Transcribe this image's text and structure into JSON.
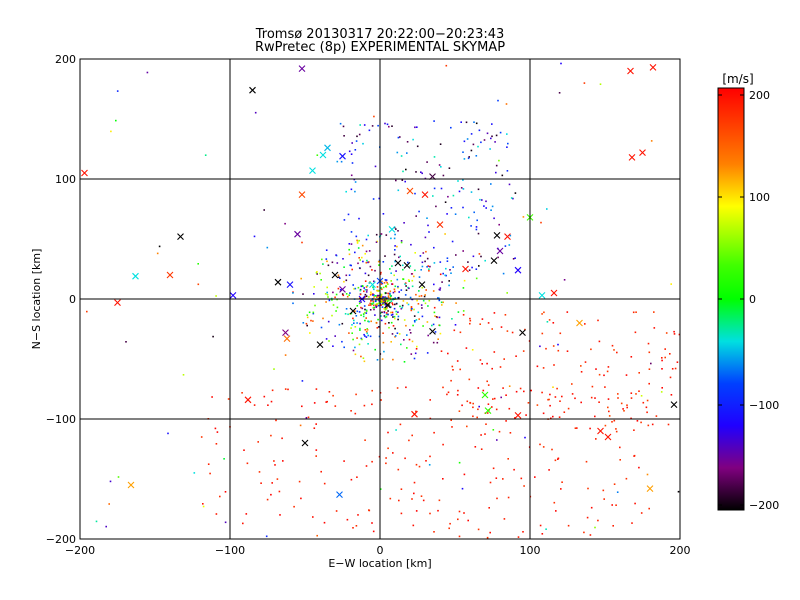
{
  "chart_data": {
    "type": "scatter",
    "title": "Tromsø 20130317 20:22:00−20:23:43",
    "subtitle": "RwPretec (8p) EXPERIMENTAL SKYMAP",
    "xlabel": "E−W location [km]",
    "ylabel": "N−S location [km]",
    "xlim": [
      -200,
      200
    ],
    "ylim": [
      -200,
      200
    ],
    "xticks": [
      "−200",
      "−100",
      "0",
      "100",
      "200"
    ],
    "yticks": [
      "−200",
      "−100",
      "0",
      "100",
      "200"
    ],
    "grid": true,
    "colorbar": {
      "label": "[m/s]",
      "range": [
        -200,
        200
      ],
      "ticks": [
        "200",
        "100",
        "0",
        "−100",
        "−200"
      ],
      "colormap": "black-purple-blue-cyan-green-yellow-red"
    },
    "cross_points": [
      {
        "x": -85,
        "y": 174,
        "v": -200
      },
      {
        "x": -52,
        "y": 192,
        "v": -150
      },
      {
        "x": -197,
        "y": 105,
        "v": 190
      },
      {
        "x": -52,
        "y": 87,
        "v": 160
      },
      {
        "x": -35,
        "y": 126,
        "v": -50
      },
      {
        "x": -38,
        "y": 120,
        "v": -40
      },
      {
        "x": -45,
        "y": 107,
        "v": -40
      },
      {
        "x": -25,
        "y": 119,
        "v": -110
      },
      {
        "x": 167,
        "y": 190,
        "v": 190
      },
      {
        "x": 182,
        "y": 193,
        "v": 190
      },
      {
        "x": 168,
        "y": 118,
        "v": 190
      },
      {
        "x": 175,
        "y": 122,
        "v": 190
      },
      {
        "x": -133,
        "y": 52,
        "v": -200
      },
      {
        "x": -163,
        "y": 19,
        "v": -40
      },
      {
        "x": -140,
        "y": 20,
        "v": 170
      },
      {
        "x": -175,
        "y": -3,
        "v": 190
      },
      {
        "x": -98,
        "y": 3,
        "v": -120
      },
      {
        "x": -68,
        "y": 14,
        "v": -200
      },
      {
        "x": -60,
        "y": 12,
        "v": -110
      },
      {
        "x": -55,
        "y": 54,
        "v": -150
      },
      {
        "x": -63,
        "y": -28,
        "v": -160
      },
      {
        "x": -62,
        "y": -33,
        "v": 140
      },
      {
        "x": -40,
        "y": -38,
        "v": -200
      },
      {
        "x": -88,
        "y": -84,
        "v": 190
      },
      {
        "x": -50,
        "y": -120,
        "v": -200
      },
      {
        "x": -27,
        "y": -163,
        "v": -70
      },
      {
        "x": -166,
        "y": -155,
        "v": 120
      },
      {
        "x": 20,
        "y": 90,
        "v": 160
      },
      {
        "x": 30,
        "y": 87,
        "v": 190
      },
      {
        "x": 35,
        "y": 102,
        "v": -180
      },
      {
        "x": 40,
        "y": 62,
        "v": 175
      },
      {
        "x": 8,
        "y": 58,
        "v": -40
      },
      {
        "x": 78,
        "y": 53,
        "v": -200
      },
      {
        "x": 85,
        "y": 52,
        "v": 190
      },
      {
        "x": 80,
        "y": 40,
        "v": -150
      },
      {
        "x": 76,
        "y": 32,
        "v": -200
      },
      {
        "x": 92,
        "y": 24,
        "v": -120
      },
      {
        "x": 57,
        "y": 25,
        "v": 190
      },
      {
        "x": 100,
        "y": 68,
        "v": 30
      },
      {
        "x": 12,
        "y": 30,
        "v": -200
      },
      {
        "x": 28,
        "y": 12,
        "v": -200
      },
      {
        "x": 108,
        "y": 3,
        "v": -40
      },
      {
        "x": 116,
        "y": 5,
        "v": 190
      },
      {
        "x": 133,
        "y": -20,
        "v": 120
      },
      {
        "x": 95,
        "y": -28,
        "v": -200
      },
      {
        "x": 35,
        "y": -27,
        "v": -200
      },
      {
        "x": 70,
        "y": -80,
        "v": 20
      },
      {
        "x": 72,
        "y": -93,
        "v": 20
      },
      {
        "x": 92,
        "y": -97,
        "v": 190
      },
      {
        "x": 23,
        "y": -96,
        "v": 190
      },
      {
        "x": 147,
        "y": -110,
        "v": 190
      },
      {
        "x": 152,
        "y": -115,
        "v": 190
      },
      {
        "x": 196,
        "y": -88,
        "v": -200
      },
      {
        "x": 180,
        "y": -158,
        "v": 120
      },
      {
        "x": -30,
        "y": 20,
        "v": -200
      },
      {
        "x": -25,
        "y": 8,
        "v": -150
      },
      {
        "x": -18,
        "y": -10,
        "v": -200
      },
      {
        "x": -12,
        "y": 0,
        "v": -120
      },
      {
        "x": 0,
        "y": 15,
        "v": -80
      },
      {
        "x": 18,
        "y": 28,
        "v": -200
      },
      {
        "x": 5,
        "y": -5,
        "v": -200
      },
      {
        "x": -5,
        "y": 12,
        "v": -40
      }
    ]
  }
}
